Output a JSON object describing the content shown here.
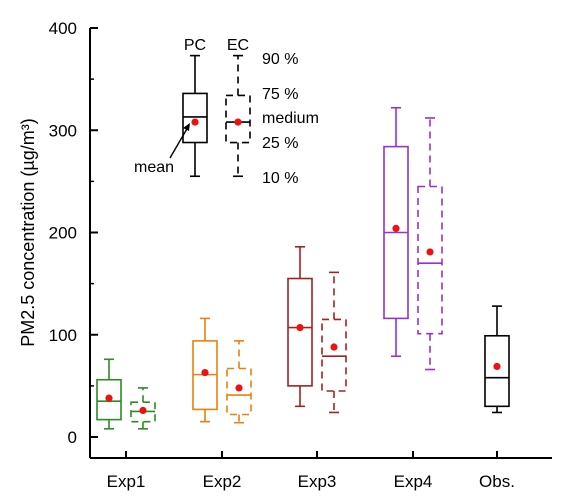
{
  "chart_data": {
    "type": "boxplot",
    "ylabel": "PM2.5 concentration (µg/m³)",
    "ylim": [
      0,
      400
    ],
    "yticks": [
      0,
      100,
      200,
      300,
      400
    ],
    "categories": [
      "Exp1",
      "Exp2",
      "Exp3",
      "Exp4",
      "Obs."
    ],
    "colors": {
      "Exp1": "#2e8b22",
      "Exp2": "#e8820c",
      "Exp3": "#a52020",
      "Exp4": "#9a30cf",
      "Obs.": "#000000",
      "mean_marker": "#ee1111"
    },
    "boxes": [
      {
        "category": "Exp1",
        "kind": "PC",
        "p10": 8,
        "p25": 17,
        "median": 35,
        "p75": 56,
        "p90": 76,
        "mean": 38
      },
      {
        "category": "Exp1",
        "kind": "EC",
        "p10": 8,
        "p25": 15,
        "median": 25,
        "p75": 34,
        "p90": 48,
        "mean": 26
      },
      {
        "category": "Exp2",
        "kind": "PC",
        "p10": 15,
        "p25": 27,
        "median": 61,
        "p75": 94,
        "p90": 116,
        "mean": 63
      },
      {
        "category": "Exp2",
        "kind": "EC",
        "p10": 14,
        "p25": 22,
        "median": 41,
        "p75": 67,
        "p90": 94,
        "mean": 48
      },
      {
        "category": "Exp3",
        "kind": "PC",
        "p10": 30,
        "p25": 50,
        "median": 107,
        "p75": 155,
        "p90": 186,
        "mean": 107
      },
      {
        "category": "Exp3",
        "kind": "EC",
        "p10": 24,
        "p25": 45,
        "median": 79,
        "p75": 115,
        "p90": 161,
        "mean": 88
      },
      {
        "category": "Exp4",
        "kind": "PC",
        "p10": 79,
        "p25": 116,
        "median": 200,
        "p75": 284,
        "p90": 322,
        "mean": 204
      },
      {
        "category": "Exp4",
        "kind": "EC",
        "p10": 66,
        "p25": 101,
        "median": 170,
        "p75": 245,
        "p90": 312,
        "mean": 181
      },
      {
        "category": "Obs.",
        "kind": "PC",
        "p10": 24,
        "p25": 30,
        "median": 58,
        "p75": 99,
        "p90": 128,
        "mean": 69
      }
    ],
    "legend": {
      "pc_label": "PC",
      "ec_label": "EC",
      "p90_label": "90 %",
      "p75_label": "75 %",
      "median_label": "medium",
      "p25_label": "25 %",
      "p10_label": "10 %",
      "mean_label": "mean",
      "pc_example": {
        "p10": 255,
        "p25": 288,
        "median": 313,
        "p75": 336,
        "p90": 373,
        "mean": 308
      },
      "ec_example": {
        "p10": 255,
        "p25": 288,
        "median": 308,
        "p75": 334,
        "p90": 373,
        "mean": 308
      }
    }
  }
}
